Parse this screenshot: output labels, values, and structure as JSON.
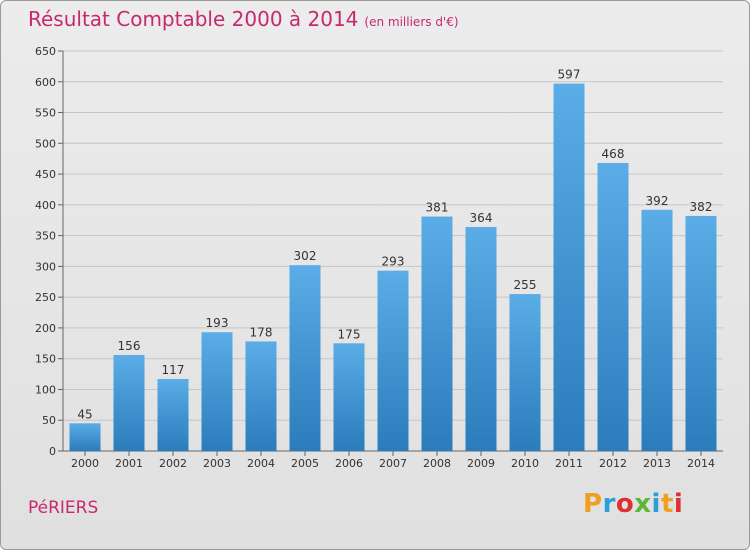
{
  "header": {
    "title": "Résultat Comptable 2000 à 2014",
    "subtitle": "(en milliers d'€)"
  },
  "footer": {
    "city": "PéRIERS",
    "logo_letters": [
      "P",
      "r",
      "o",
      "x",
      "i",
      "t",
      "i"
    ]
  },
  "colors": {
    "accent": "#c8286f",
    "bar_top": "#5aade6",
    "bar_bottom": "#2a7cbc",
    "grid": "#c6c6c6"
  },
  "chart_data": {
    "type": "bar",
    "categories": [
      "2000",
      "2001",
      "2002",
      "2003",
      "2004",
      "2005",
      "2006",
      "2007",
      "2008",
      "2009",
      "2010",
      "2011",
      "2012",
      "2013",
      "2014"
    ],
    "values": [
      45,
      156,
      117,
      193,
      178,
      302,
      175,
      293,
      381,
      364,
      255,
      597,
      468,
      392,
      382
    ],
    "ylim": [
      0,
      650
    ],
    "yticks": [
      0,
      50,
      100,
      150,
      200,
      250,
      300,
      350,
      400,
      450,
      500,
      550,
      600,
      650
    ],
    "grid": true,
    "data_labels": true
  }
}
